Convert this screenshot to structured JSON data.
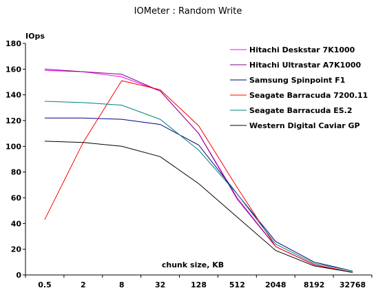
{
  "chart_data": {
    "type": "line",
    "title": "IOMeter : Random Write",
    "ylabel": "IOps",
    "xlabel": "chunk size, KB",
    "categories": [
      "0.5",
      "2",
      "8",
      "32",
      "128",
      "512",
      "2048",
      "8192",
      "32768"
    ],
    "ylim": [
      0,
      180
    ],
    "yticks": [
      0,
      20,
      40,
      60,
      80,
      100,
      120,
      140,
      160,
      180
    ],
    "grid": false,
    "legend_position": "top-right",
    "series": [
      {
        "name": "Hitachi Deskstar 7K1000",
        "color": "#ff00ff",
        "values": [
          159,
          158,
          154,
          143,
          110,
          60,
          22,
          8,
          2
        ]
      },
      {
        "name": "Hitachi Ultrastar A7K1000",
        "color": "#800080",
        "values": [
          160,
          158,
          156,
          143,
          110,
          59,
          22,
          8,
          2
        ]
      },
      {
        "name": "Samsung Spinpoint F1",
        "color": "#000080",
        "values": [
          122,
          122,
          121,
          117,
          101,
          63,
          26,
          10,
          3
        ]
      },
      {
        "name": "Seagate Barracuda 7200.11",
        "color": "#ff0000",
        "values": [
          43,
          103,
          151,
          144,
          116,
          68,
          22,
          8,
          2
        ]
      },
      {
        "name": "Seagate Barracuda ES.2",
        "color": "#008080",
        "values": [
          135,
          134,
          132,
          121,
          97,
          63,
          24,
          9,
          3
        ]
      },
      {
        "name": "Western Digital Caviar GP",
        "color": "#000000",
        "values": [
          104,
          103,
          100,
          92,
          71,
          45,
          19,
          7,
          2
        ]
      }
    ]
  }
}
